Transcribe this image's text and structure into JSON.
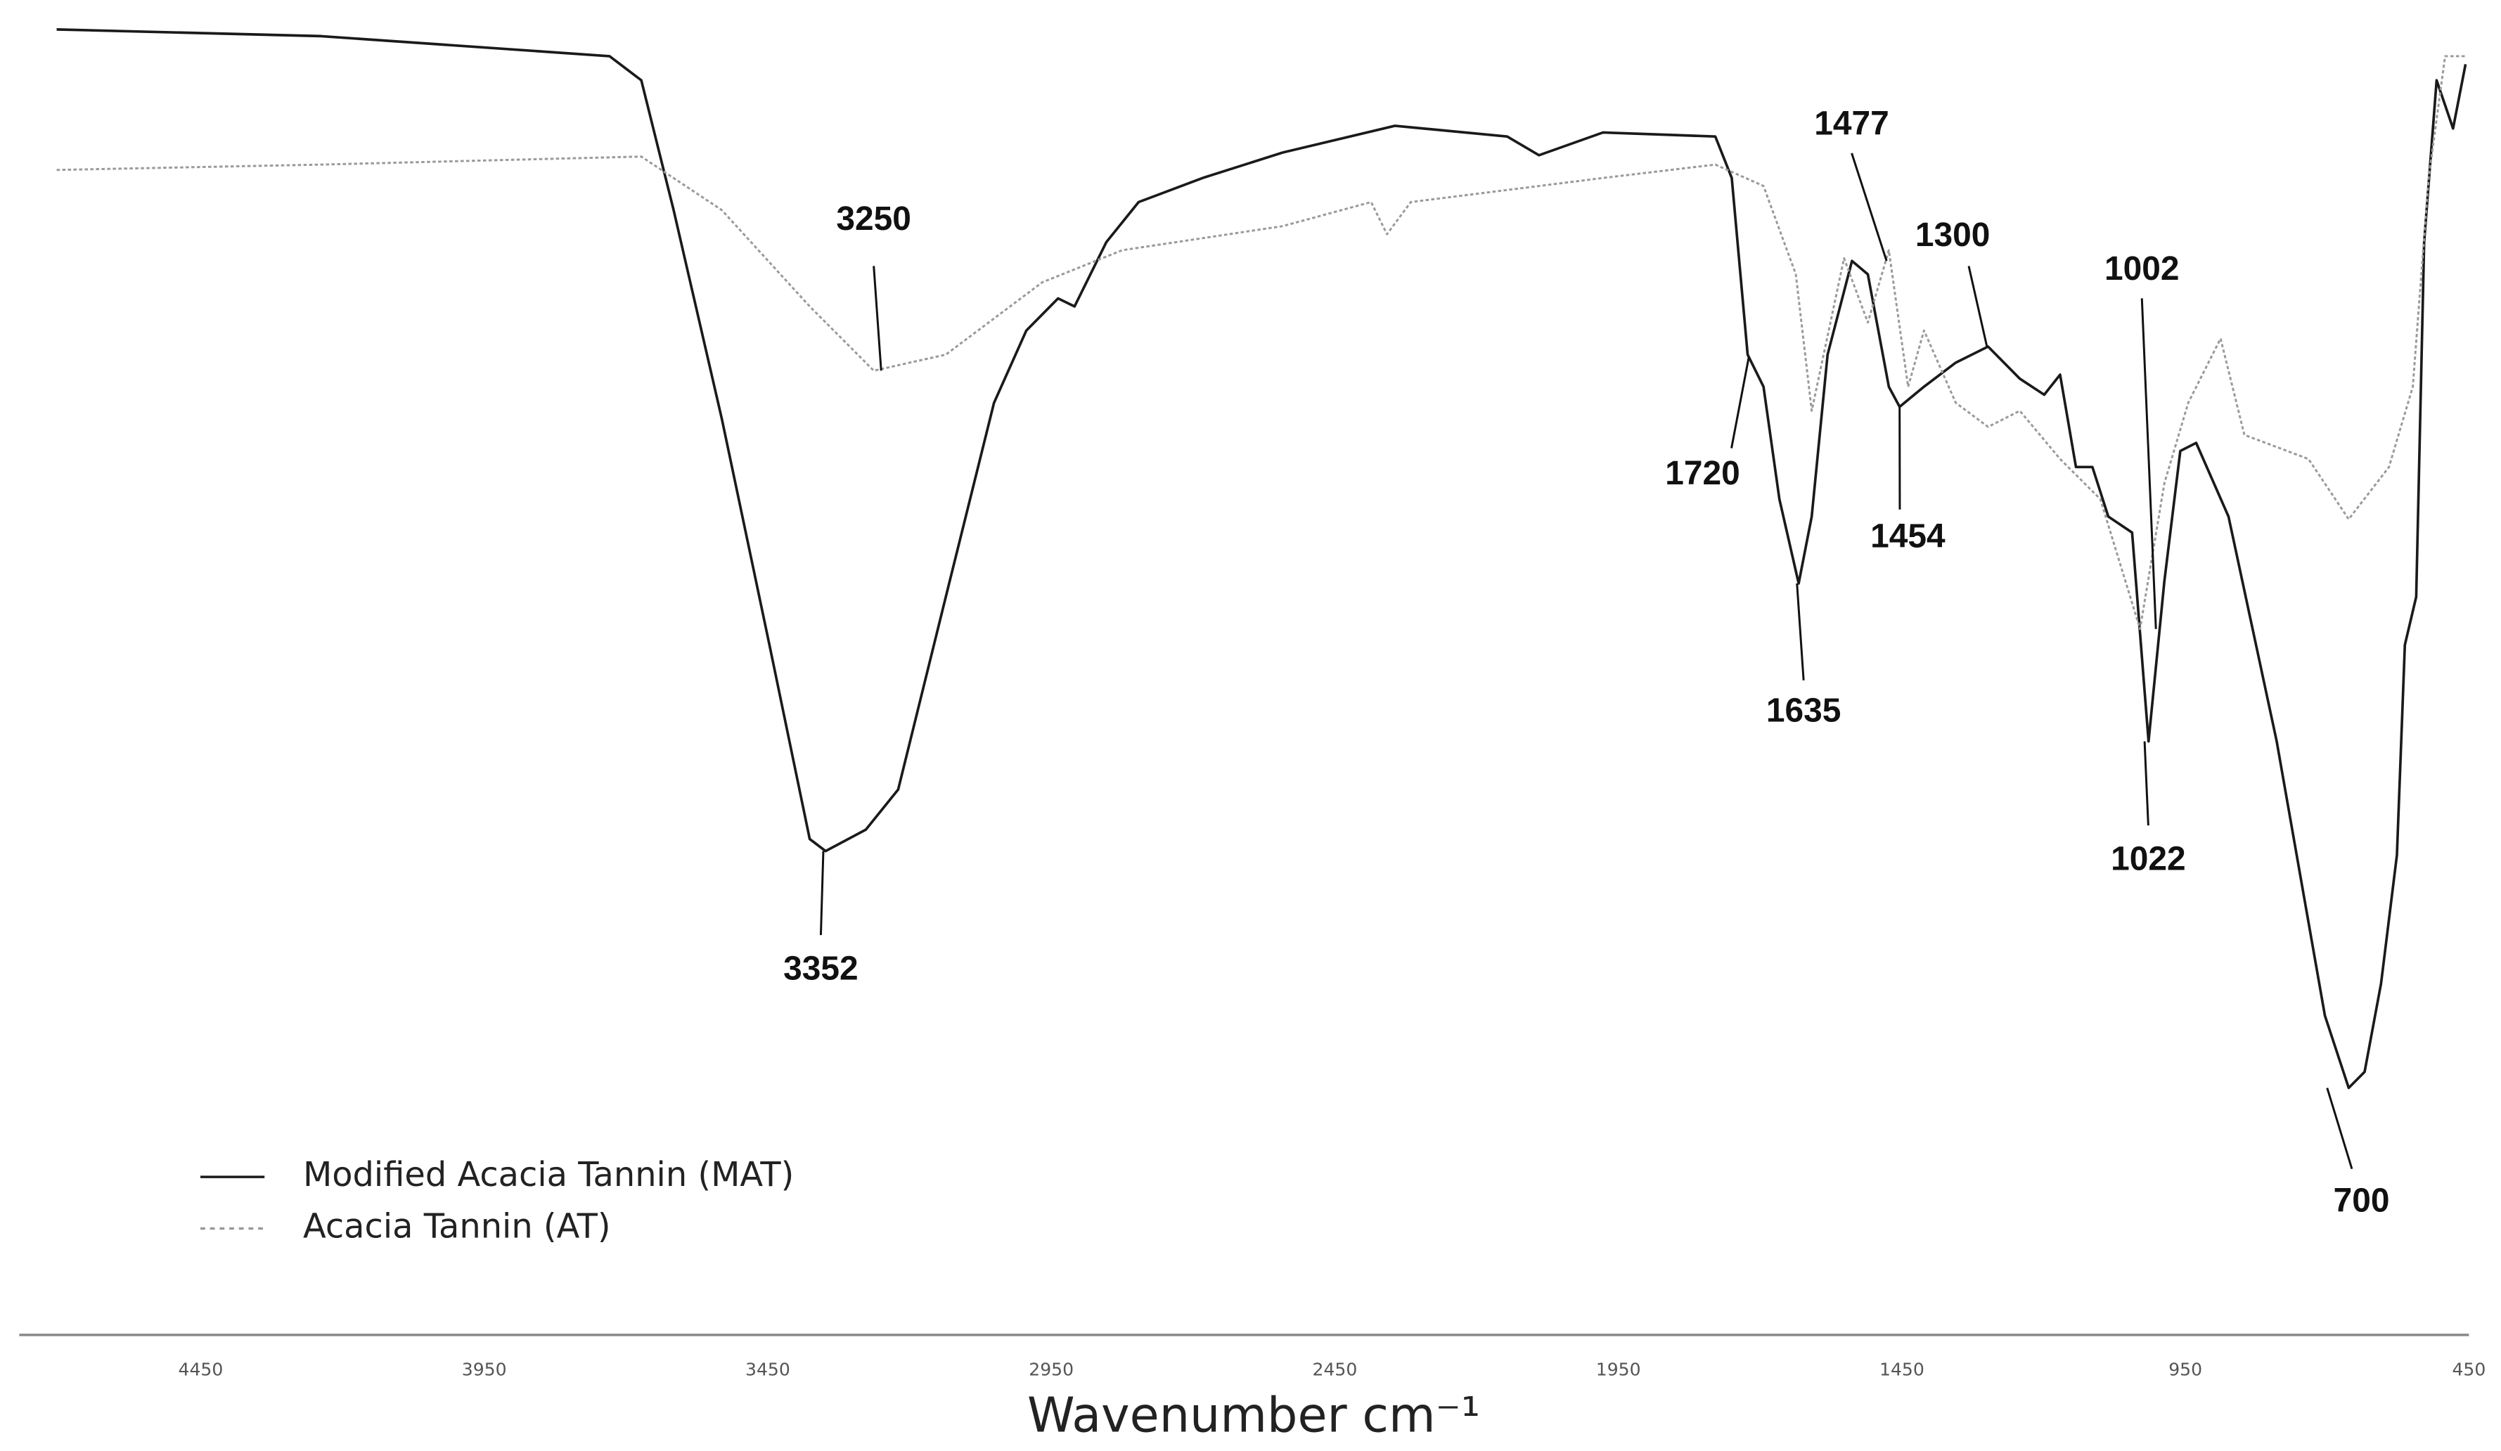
{
  "chart_data": {
    "type": "line",
    "xlabel": "Wavenumber cm⁻¹",
    "xlim": [
      4770,
      450
    ],
    "xticks": [
      4450,
      3950,
      3450,
      2950,
      2450,
      1950,
      1450,
      950,
      450
    ],
    "ylim": [
      0,
      100
    ],
    "grid": false,
    "legend": "lower left",
    "series": [
      {
        "name": "Modified Acacia Tannin (MAT)",
        "color": "#1a1a1a",
        "style": "solid",
        "x": [
          4704,
          4238,
          3729,
          3673,
          3616,
          3531,
          3447,
          3376,
          3348,
          3277,
          3220,
          3136,
          3051,
          2994,
          2938,
          2909,
          2853,
          2796,
          2683,
          2542,
          2344,
          2146,
          2090,
          1977,
          1779,
          1750,
          1722,
          1694,
          1666,
          1632,
          1609,
          1581,
          1538,
          1510,
          1473,
          1454,
          1411,
          1355,
          1298,
          1242,
          1199,
          1171,
          1143,
          1114,
          1086,
          1044,
          1015,
          987,
          959,
          931,
          874,
          789,
          704,
          662,
          634,
          605,
          577,
          563,
          543,
          529,
          507,
          478,
          456
        ],
        "values": [
          97.8,
          97.3,
          95.8,
          94.0,
          84.3,
          68.7,
          51.8,
          37.3,
          36.4,
          38.0,
          41.0,
          55.4,
          69.9,
          75.3,
          77.7,
          77.1,
          81.9,
          84.9,
          86.7,
          88.6,
          90.6,
          89.8,
          88.4,
          90.1,
          89.8,
          86.7,
          73.5,
          71.1,
          62.7,
          56.4,
          61.4,
          73.5,
          80.5,
          79.5,
          71.1,
          69.6,
          71.1,
          72.9,
          74.1,
          71.7,
          70.5,
          72.0,
          65.1,
          65.1,
          61.4,
          60.2,
          44.6,
          56.6,
          66.3,
          66.9,
          61.4,
          44.6,
          24.1,
          18.7,
          19.9,
          26.5,
          36.1,
          51.8,
          55.4,
          81.9,
          94.0,
          90.4,
          95.2
        ]
      },
      {
        "name": "Acacia Tannin (AT)",
        "color": "#9a9a9a",
        "style": "dotted",
        "x": [
          4704,
          4238,
          3673,
          3531,
          3376,
          3263,
          3136,
          2966,
          2825,
          2542,
          2386,
          2358,
          2316,
          1977,
          1779,
          1694,
          1637,
          1609,
          1552,
          1510,
          1473,
          1439,
          1411,
          1355,
          1298,
          1242,
          1171,
          1100,
          1030,
          987,
          945,
          888,
          846,
          733,
          662,
          591,
          549,
          521,
          492,
          456
        ],
        "values": [
          87.3,
          87.7,
          88.3,
          84.3,
          77.1,
          72.3,
          73.5,
          78.9,
          81.3,
          83.1,
          84.9,
          82.5,
          84.9,
          86.7,
          87.7,
          86.1,
          79.5,
          69.3,
          80.7,
          75.9,
          81.3,
          71.1,
          75.3,
          69.9,
          68.1,
          69.3,
          65.7,
          62.7,
          53.0,
          63.9,
          69.9,
          74.7,
          67.5,
          65.7,
          61.2,
          65.1,
          71.1,
          86.7,
          95.8,
          95.8
        ]
      }
    ],
    "annotations": [
      {
        "label": "3250",
        "x": 3250,
        "y": 72.3
      },
      {
        "label": "3352",
        "x": 3352,
        "y": 36.4
      },
      {
        "label": "1720",
        "x": 1720,
        "y": 73.3
      },
      {
        "label": "1635",
        "x": 1635,
        "y": 56.4
      },
      {
        "label": "1477",
        "x": 1477,
        "y": 80.5
      },
      {
        "label": "1454",
        "x": 1454,
        "y": 69.6
      },
      {
        "label": "1300",
        "x": 1300,
        "y": 74.1
      },
      {
        "label": "1002",
        "x": 1002,
        "y": 53.0
      },
      {
        "label": "1022",
        "x": 1022,
        "y": 44.6
      },
      {
        "label": "700",
        "x": 700,
        "y": 18.7
      }
    ]
  }
}
